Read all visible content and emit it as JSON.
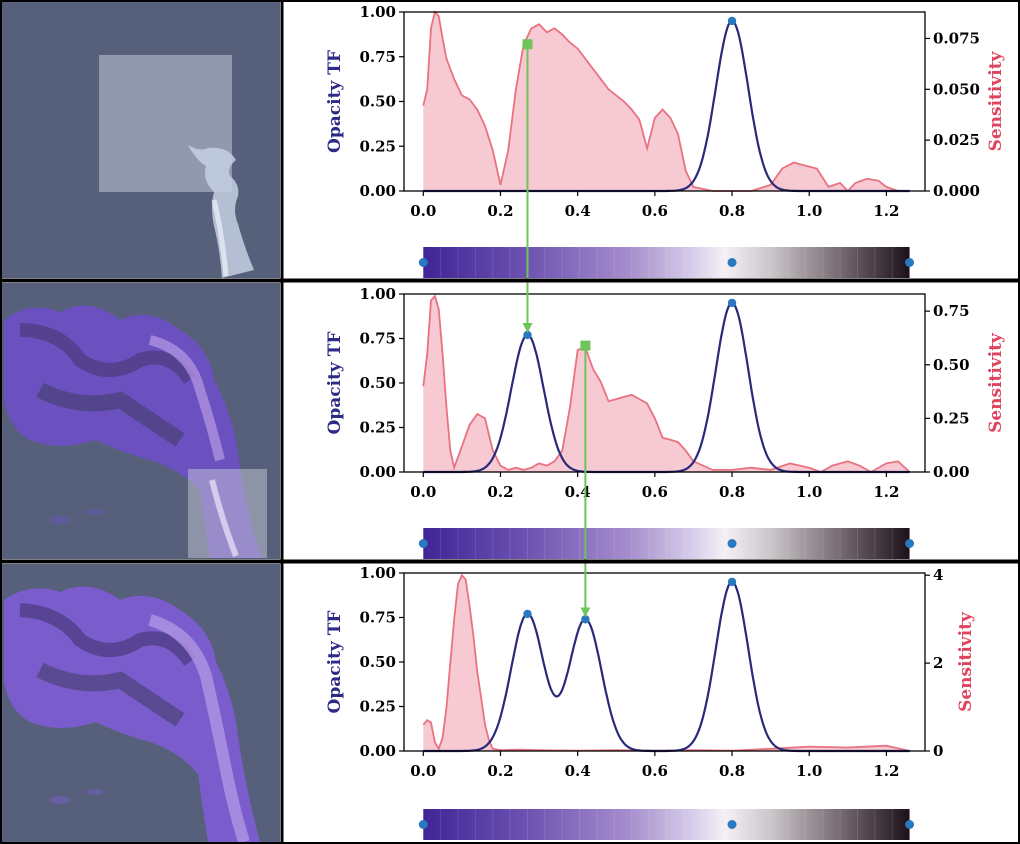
{
  "colors": {
    "background_render": "#56607a",
    "opacity_line": "#2a2a7a",
    "sensitivity_line": "#e8727f",
    "sensitivity_fill": "#f7c9d3",
    "sensitivity_label": "#e0455f",
    "opacity_label": "#2e2b86",
    "control_point": "#2a78c0",
    "arrow": "#6cc45a",
    "frame": "#000000"
  },
  "chart_data": [
    {
      "type": "line",
      "panel": 1,
      "ylabel_left": "Opacity TF",
      "ylabel_right": "Sensitivity",
      "xlim": [
        -0.05,
        1.3
      ],
      "ylim_left": [
        0,
        1.0
      ],
      "ylim_right": [
        0,
        0.088
      ],
      "x_ticks": [
        "0.0",
        "0.2",
        "0.4",
        "0.6",
        "0.8",
        "1.0",
        "1.2"
      ],
      "y_ticks_left": [
        "0.00",
        "0.25",
        "0.50",
        "0.75",
        "1.00"
      ],
      "y_ticks_right": [
        "0.000",
        "0.025",
        "0.050",
        "0.075"
      ],
      "opacity_peaks": [
        {
          "x": 0.8,
          "y": 0.95
        }
      ],
      "sensitivity": {
        "x": [
          0.0,
          0.01,
          0.02,
          0.03,
          0.04,
          0.05,
          0.06,
          0.08,
          0.1,
          0.12,
          0.14,
          0.16,
          0.18,
          0.2,
          0.22,
          0.24,
          0.26,
          0.28,
          0.3,
          0.32,
          0.34,
          0.36,
          0.38,
          0.4,
          0.42,
          0.44,
          0.46,
          0.48,
          0.5,
          0.52,
          0.54,
          0.56,
          0.58,
          0.6,
          0.62,
          0.64,
          0.66,
          0.68,
          0.7,
          0.75,
          0.8,
          0.85,
          0.9,
          0.93,
          0.96,
          0.98,
          1.0,
          1.02,
          1.05,
          1.08,
          1.1,
          1.12,
          1.15,
          1.18,
          1.2,
          1.23,
          1.26
        ],
        "values": [
          0.042,
          0.05,
          0.08,
          0.088,
          0.086,
          0.075,
          0.065,
          0.055,
          0.047,
          0.045,
          0.04,
          0.032,
          0.02,
          0.003,
          0.02,
          0.05,
          0.072,
          0.08,
          0.082,
          0.078,
          0.08,
          0.077,
          0.073,
          0.07,
          0.065,
          0.06,
          0.055,
          0.05,
          0.047,
          0.044,
          0.04,
          0.035,
          0.021,
          0.036,
          0.04,
          0.036,
          0.028,
          0.01,
          0.002,
          0.0,
          0.0,
          0.0,
          0.003,
          0.011,
          0.014,
          0.013,
          0.012,
          0.011,
          0.002,
          0.004,
          0.0,
          0.004,
          0.006,
          0.005,
          0.002,
          0.0,
          0.0
        ]
      },
      "colorbar_points": [
        0.0,
        0.8,
        1.26
      ]
    },
    {
      "type": "line",
      "panel": 2,
      "ylabel_left": "Opacity TF",
      "ylabel_right": "Sensitivity",
      "xlim": [
        -0.05,
        1.3
      ],
      "ylim_left": [
        0,
        1.0
      ],
      "ylim_right": [
        0,
        0.83
      ],
      "x_ticks": [
        "0.0",
        "0.2",
        "0.4",
        "0.6",
        "0.8",
        "1.0",
        "1.2"
      ],
      "y_ticks_left": [
        "0.00",
        "0.25",
        "0.50",
        "0.75",
        "1.00"
      ],
      "y_ticks_right": [
        "0.00",
        "0.25",
        "0.50",
        "0.75"
      ],
      "opacity_peaks": [
        {
          "x": 0.27,
          "y": 0.77
        },
        {
          "x": 0.8,
          "y": 0.95
        }
      ],
      "sensitivity": {
        "x": [
          0.0,
          0.01,
          0.02,
          0.03,
          0.04,
          0.05,
          0.06,
          0.07,
          0.08,
          0.1,
          0.12,
          0.14,
          0.16,
          0.18,
          0.2,
          0.22,
          0.24,
          0.26,
          0.28,
          0.3,
          0.32,
          0.34,
          0.36,
          0.38,
          0.4,
          0.42,
          0.44,
          0.46,
          0.48,
          0.5,
          0.52,
          0.54,
          0.56,
          0.58,
          0.6,
          0.62,
          0.64,
          0.66,
          0.68,
          0.7,
          0.75,
          0.8,
          0.85,
          0.9,
          0.95,
          1.0,
          1.03,
          1.06,
          1.1,
          1.13,
          1.16,
          1.2,
          1.23,
          1.26
        ],
        "values": [
          0.4,
          0.55,
          0.8,
          0.82,
          0.76,
          0.55,
          0.3,
          0.1,
          0.02,
          0.12,
          0.22,
          0.27,
          0.25,
          0.1,
          0.03,
          0.01,
          0.02,
          0.01,
          0.02,
          0.04,
          0.03,
          0.05,
          0.1,
          0.3,
          0.57,
          0.58,
          0.48,
          0.42,
          0.33,
          0.34,
          0.35,
          0.36,
          0.34,
          0.32,
          0.25,
          0.16,
          0.15,
          0.14,
          0.1,
          0.05,
          0.01,
          0.01,
          0.02,
          0.01,
          0.04,
          0.02,
          0.0,
          0.03,
          0.05,
          0.03,
          0.0,
          0.04,
          0.05,
          0.0
        ]
      },
      "colorbar_points": [
        0.0,
        0.8,
        1.26
      ]
    },
    {
      "type": "line",
      "panel": 3,
      "ylabel_left": "Opacity TF",
      "ylabel_right": "Sensitivity",
      "xlim": [
        -0.05,
        1.3
      ],
      "ylim_left": [
        0,
        1.0
      ],
      "ylim_right": [
        0,
        4.05
      ],
      "x_ticks": [
        "0.0",
        "0.2",
        "0.4",
        "0.6",
        "0.8",
        "1.0",
        "1.2"
      ],
      "y_ticks_left": [
        "0.00",
        "0.25",
        "0.50",
        "0.75",
        "1.00"
      ],
      "y_ticks_right": [
        "0",
        "2",
        "4"
      ],
      "opacity_peaks": [
        {
          "x": 0.27,
          "y": 0.77
        },
        {
          "x": 0.42,
          "y": 0.74
        },
        {
          "x": 0.8,
          "y": 0.95
        }
      ],
      "sensitivity": {
        "x": [
          0.0,
          0.01,
          0.02,
          0.03,
          0.04,
          0.05,
          0.06,
          0.07,
          0.08,
          0.09,
          0.1,
          0.11,
          0.12,
          0.13,
          0.14,
          0.15,
          0.16,
          0.17,
          0.18,
          0.2,
          0.25,
          0.3,
          0.4,
          0.5,
          0.6,
          0.7,
          0.8,
          0.9,
          1.0,
          1.1,
          1.2,
          1.26
        ],
        "values": [
          0.6,
          0.7,
          0.65,
          0.2,
          0.05,
          0.3,
          1.0,
          2.0,
          3.0,
          3.8,
          4.0,
          3.9,
          3.3,
          2.6,
          1.8,
          1.2,
          0.6,
          0.25,
          0.05,
          0.02,
          0.03,
          0.02,
          0.01,
          0.02,
          0.01,
          0.02,
          0.01,
          0.05,
          0.1,
          0.08,
          0.12,
          0.0
        ]
      },
      "colorbar_points": [
        0.0,
        0.8,
        1.26
      ]
    }
  ],
  "arrows": [
    {
      "from_panel": 1,
      "from_x": 0.27,
      "from_y": 0.82,
      "to_panel": 2,
      "to_x": 0.27,
      "to_y": 0.77
    },
    {
      "from_panel": 2,
      "from_x": 0.42,
      "from_y": 0.71,
      "to_panel": 3,
      "to_x": 0.42,
      "to_y": 0.74
    }
  ]
}
